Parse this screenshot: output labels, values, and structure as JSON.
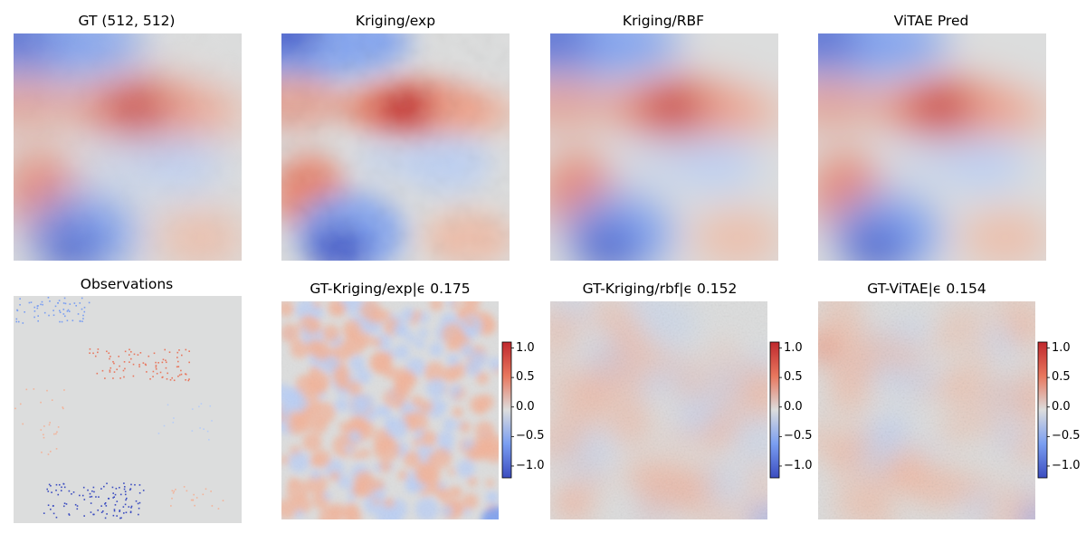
{
  "colors": {
    "neutral": "#dcdddd",
    "warm_light": "#f2b39a",
    "warm": "#e8775e",
    "warm_dark": "#c0282d",
    "cool_light": "#b8cdf6",
    "cool": "#7a9ef1",
    "cool_dark": "#3b4cc0"
  },
  "colormap": "coolwarm",
  "chart_data": [
    {
      "type": "heatmap",
      "title": "GT (512, 512)"
    },
    {
      "type": "heatmap",
      "title": "Kriging/exp"
    },
    {
      "type": "heatmap",
      "title": "Kriging/RBF"
    },
    {
      "type": "heatmap",
      "title": "ViTAE Pred"
    },
    {
      "type": "heatmap",
      "title": "Observations"
    },
    {
      "type": "heatmap",
      "title": "GT-Kriging/exp|ϵ 0.175",
      "colorbar": {
        "range": [
          -1.2,
          1.1
        ],
        "ticks": [
          "1.0",
          "0.5",
          "0.0",
          "−0.5",
          "−1.0"
        ]
      }
    },
    {
      "type": "heatmap",
      "title": "GT-Kriging/rbf|ϵ 0.152",
      "colorbar": {
        "range": [
          -1.2,
          1.1
        ],
        "ticks": [
          "1.0",
          "0.5",
          "0.0",
          "−0.5",
          "−1.0"
        ]
      }
    },
    {
      "type": "heatmap",
      "title": "GT-ViTAE|ϵ 0.154",
      "colorbar": {
        "range": [
          -1.2,
          1.1
        ],
        "ticks": [
          "1.0",
          "0.5",
          "0.0",
          "−0.5",
          "−1.0"
        ]
      }
    }
  ]
}
